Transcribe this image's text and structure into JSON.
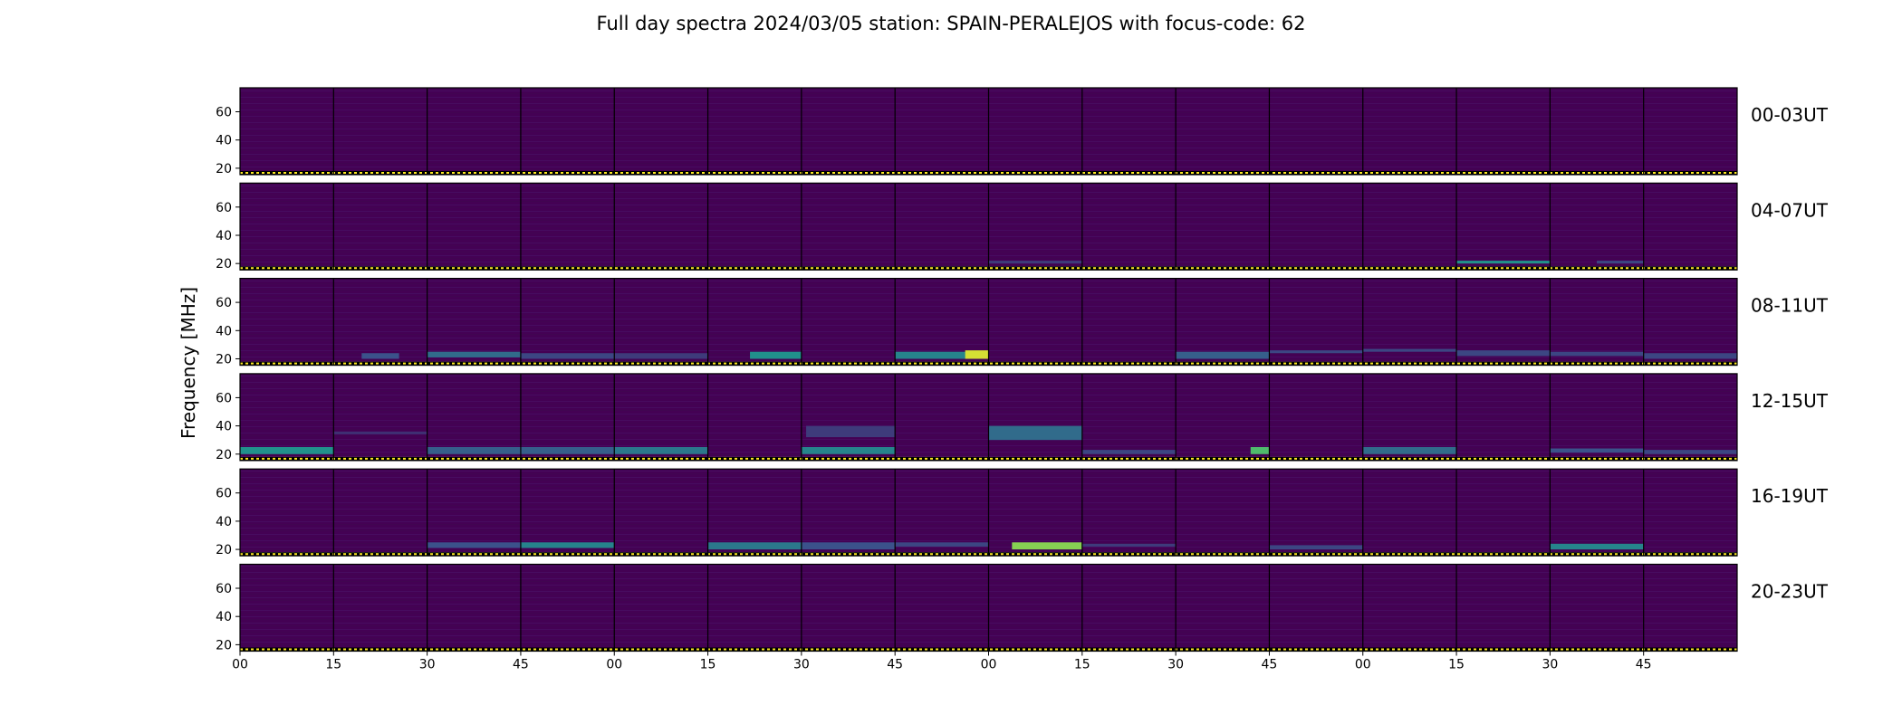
{
  "chart_data": {
    "type": "heatmap",
    "title": "Full day spectra 2024/03/05 station: SPAIN-PERALEJOS with focus-code: 62",
    "ylabel": "Frequency [MHz]",
    "xlabel": "",
    "ylim": [
      18,
      77
    ],
    "y_ticks": [
      20,
      40,
      60
    ],
    "x_tick_labels": [
      "00",
      "15",
      "30",
      "45",
      "00",
      "15",
      "30",
      "45",
      "00",
      "15",
      "30",
      "45",
      "00",
      "15",
      "30",
      "45"
    ],
    "panels_per_row": 16,
    "colors": {
      "background": "#440154",
      "mid": "#3b528b",
      "teal": "#21918c",
      "green": "#5ec962",
      "yellow": "#fde725",
      "dotted_line": "#fde725"
    },
    "rows": [
      {
        "label": "00-03UT",
        "features": []
      },
      {
        "label": "04-07UT",
        "features": [
          {
            "panel": 8,
            "t0": 0.0,
            "t1": 1.0,
            "f0": 20,
            "f1": 22,
            "level": 0.25
          },
          {
            "panel": 13,
            "t0": 0.0,
            "t1": 1.0,
            "f0": 20,
            "f1": 22,
            "level": 0.6
          },
          {
            "panel": 14,
            "t0": 0.5,
            "t1": 1.0,
            "f0": 20,
            "f1": 22,
            "level": 0.3
          }
        ]
      },
      {
        "label": "08-11UT",
        "features": [
          {
            "panel": 1,
            "t0": 0.3,
            "t1": 0.7,
            "f0": 20,
            "f1": 24,
            "level": 0.35
          },
          {
            "panel": 2,
            "t0": 0.0,
            "t1": 1.0,
            "f0": 21,
            "f1": 25,
            "level": 0.45
          },
          {
            "panel": 3,
            "t0": 0.0,
            "t1": 1.0,
            "f0": 20,
            "f1": 24,
            "level": 0.3
          },
          {
            "panel": 4,
            "t0": 0.0,
            "t1": 1.0,
            "f0": 20,
            "f1": 24,
            "level": 0.25
          },
          {
            "panel": 5,
            "t0": 0.45,
            "t1": 1.0,
            "f0": 20,
            "f1": 25,
            "level": 0.6
          },
          {
            "panel": 7,
            "t0": 0.0,
            "t1": 1.0,
            "f0": 20,
            "f1": 25,
            "level": 0.55
          },
          {
            "panel": 7,
            "t0": 0.75,
            "t1": 1.0,
            "f0": 20,
            "f1": 26,
            "level": 0.95
          },
          {
            "panel": 10,
            "t0": 0.0,
            "t1": 1.0,
            "f0": 20,
            "f1": 25,
            "level": 0.4
          },
          {
            "panel": 11,
            "t0": 0.0,
            "t1": 1.0,
            "f0": 24,
            "f1": 26,
            "level": 0.3
          },
          {
            "panel": 12,
            "t0": 0.0,
            "t1": 1.0,
            "f0": 25,
            "f1": 27,
            "level": 0.3
          },
          {
            "panel": 13,
            "t0": 0.0,
            "t1": 1.0,
            "f0": 22,
            "f1": 26,
            "level": 0.3
          },
          {
            "panel": 14,
            "t0": 0.0,
            "t1": 1.0,
            "f0": 22,
            "f1": 25,
            "level": 0.3
          },
          {
            "panel": 15,
            "t0": 0.0,
            "t1": 1.0,
            "f0": 20,
            "f1": 24,
            "level": 0.3
          }
        ]
      },
      {
        "label": "12-15UT",
        "features": [
          {
            "panel": 0,
            "t0": 0.0,
            "t1": 1.0,
            "f0": 20,
            "f1": 25,
            "level": 0.6
          },
          {
            "panel": 1,
            "t0": 0.0,
            "t1": 1.0,
            "f0": 34,
            "f1": 36,
            "level": 0.2
          },
          {
            "panel": 2,
            "t0": 0.0,
            "t1": 1.0,
            "f0": 20,
            "f1": 25,
            "level": 0.4
          },
          {
            "panel": 3,
            "t0": 0.0,
            "t1": 1.0,
            "f0": 20,
            "f1": 25,
            "level": 0.4
          },
          {
            "panel": 4,
            "t0": 0.0,
            "t1": 1.0,
            "f0": 20,
            "f1": 25,
            "level": 0.5
          },
          {
            "panel": 6,
            "t0": 0.0,
            "t1": 1.0,
            "f0": 20,
            "f1": 25,
            "level": 0.55
          },
          {
            "panel": 6,
            "t0": 0.05,
            "t1": 1.0,
            "f0": 32,
            "f1": 40,
            "level": 0.25
          },
          {
            "panel": 8,
            "t0": 0.0,
            "t1": 1.0,
            "f0": 30,
            "f1": 40,
            "level": 0.45
          },
          {
            "panel": 9,
            "t0": 0.0,
            "t1": 1.0,
            "f0": 20,
            "f1": 23,
            "level": 0.3
          },
          {
            "panel": 10,
            "t0": 0.8,
            "t1": 1.0,
            "f0": 20,
            "f1": 25,
            "level": 0.75
          },
          {
            "panel": 12,
            "t0": 0.0,
            "t1": 1.0,
            "f0": 20,
            "f1": 25,
            "level": 0.45
          },
          {
            "panel": 14,
            "t0": 0.0,
            "t1": 1.0,
            "f0": 21,
            "f1": 24,
            "level": 0.35
          },
          {
            "panel": 15,
            "t0": 0.0,
            "t1": 1.0,
            "f0": 20,
            "f1": 23,
            "level": 0.3
          }
        ]
      },
      {
        "label": "16-19UT",
        "features": [
          {
            "panel": 2,
            "t0": 0.0,
            "t1": 1.0,
            "f0": 21,
            "f1": 25,
            "level": 0.35
          },
          {
            "panel": 3,
            "t0": 0.0,
            "t1": 1.0,
            "f0": 21,
            "f1": 25,
            "level": 0.55
          },
          {
            "panel": 5,
            "t0": 0.0,
            "t1": 1.0,
            "f0": 20,
            "f1": 25,
            "level": 0.5
          },
          {
            "panel": 6,
            "t0": 0.0,
            "t1": 1.0,
            "f0": 20,
            "f1": 25,
            "level": 0.35
          },
          {
            "panel": 7,
            "t0": 0.0,
            "t1": 1.0,
            "f0": 22,
            "f1": 25,
            "level": 0.3
          },
          {
            "panel": 8,
            "t0": 0.25,
            "t1": 1.0,
            "f0": 20,
            "f1": 25,
            "level": 0.85
          },
          {
            "panel": 9,
            "t0": 0.0,
            "t1": 1.0,
            "f0": 22,
            "f1": 24,
            "level": 0.25
          },
          {
            "panel": 11,
            "t0": 0.0,
            "t1": 1.0,
            "f0": 20,
            "f1": 23,
            "level": 0.3
          },
          {
            "panel": 14,
            "t0": 0.0,
            "t1": 1.0,
            "f0": 20,
            "f1": 24,
            "level": 0.55
          }
        ]
      },
      {
        "label": "20-23UT",
        "features": []
      }
    ]
  }
}
